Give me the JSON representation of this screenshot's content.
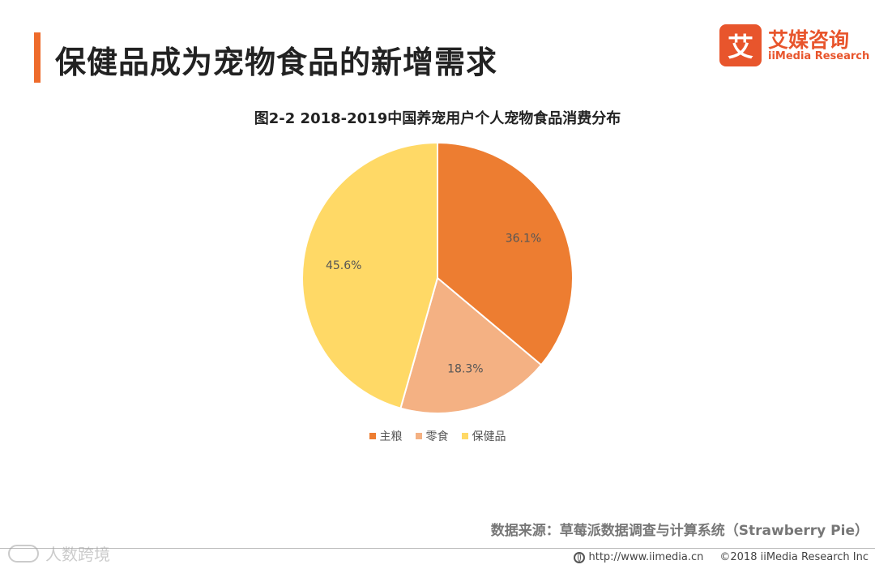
{
  "header": {
    "title": "保健品成为宠物食品的新增需求",
    "brand_logo_char": "艾",
    "brand_name": "艾媒咨询",
    "brand_sub": "iiMedia Research",
    "accent_color": "#EE6B2B"
  },
  "chart_data": {
    "type": "pie",
    "title": "图2-2  2018-2019中国养宠用户个人宠物食品消费分布",
    "slices": [
      {
        "name": "主粮",
        "value": 36.1,
        "label": "36.1%",
        "color": "#ED7D31"
      },
      {
        "name": "零食",
        "value": 18.3,
        "label": "18.3%",
        "color": "#F4B183"
      },
      {
        "name": "保健品",
        "value": 45.6,
        "label": "45.6%",
        "color": "#FFD966"
      }
    ],
    "start_angle": "12 o'clock, clockwise",
    "legend_position": "bottom"
  },
  "source": "数据来源：草莓派数据调查与计算系统（Strawberry Pie）",
  "footer": {
    "url": "http://www.iimedia.cn",
    "copyright": "©2018  iiMedia Research  Inc"
  },
  "watermark": "人数跨境"
}
